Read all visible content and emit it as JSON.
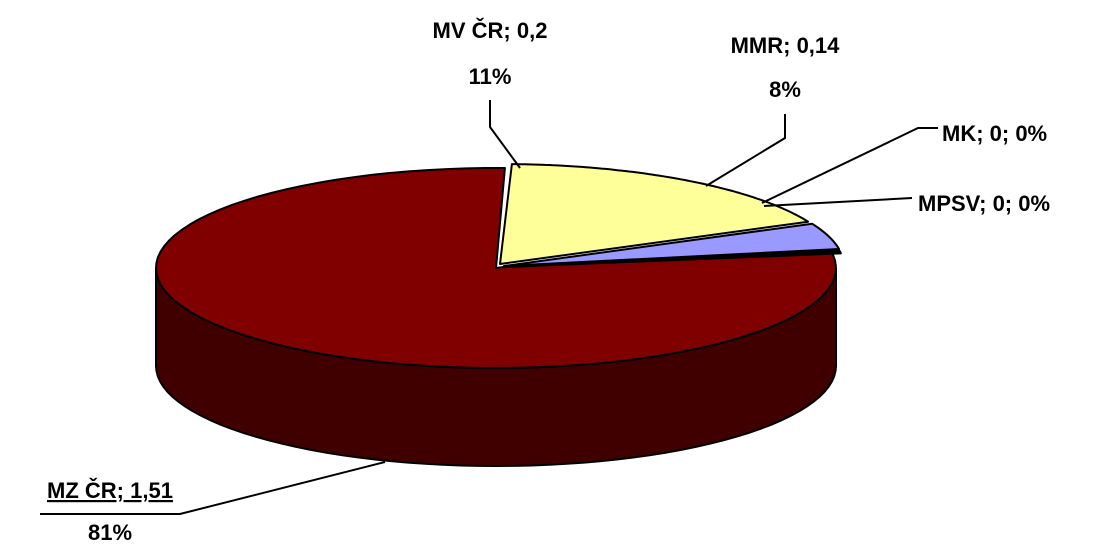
{
  "chart_data": {
    "type": "pie",
    "style": "3d-exploded",
    "title": "",
    "slices": [
      {
        "name": "MZ ČR",
        "value": 1.51,
        "percent": 81,
        "color": "#800000",
        "side_color": "#400000",
        "label_line1": "MZ ČR; 1,51",
        "label_line2": "81%"
      },
      {
        "name": "MV ČR",
        "value": 0.2,
        "percent": 11,
        "color": "#FFFF99",
        "side_color": "#808040",
        "label_line1": "MV ČR; 0,2",
        "label_line2": "11%"
      },
      {
        "name": "MMR",
        "value": 0.14,
        "percent": 8,
        "color": "#9999FF",
        "side_color": "#4d4d80",
        "label_line1": "MMR; 0,14",
        "label_line2": "8%"
      },
      {
        "name": "MK",
        "value": 0,
        "percent": 0,
        "color": "#000000",
        "side_color": "#000000",
        "label_line1": "MK; 0; 0%",
        "label_line2": ""
      },
      {
        "name": "MPSV",
        "value": 0,
        "percent": 0,
        "color": "#000000",
        "side_color": "#000000",
        "label_line1": "MPSV; 0; 0%",
        "label_line2": ""
      }
    ]
  }
}
